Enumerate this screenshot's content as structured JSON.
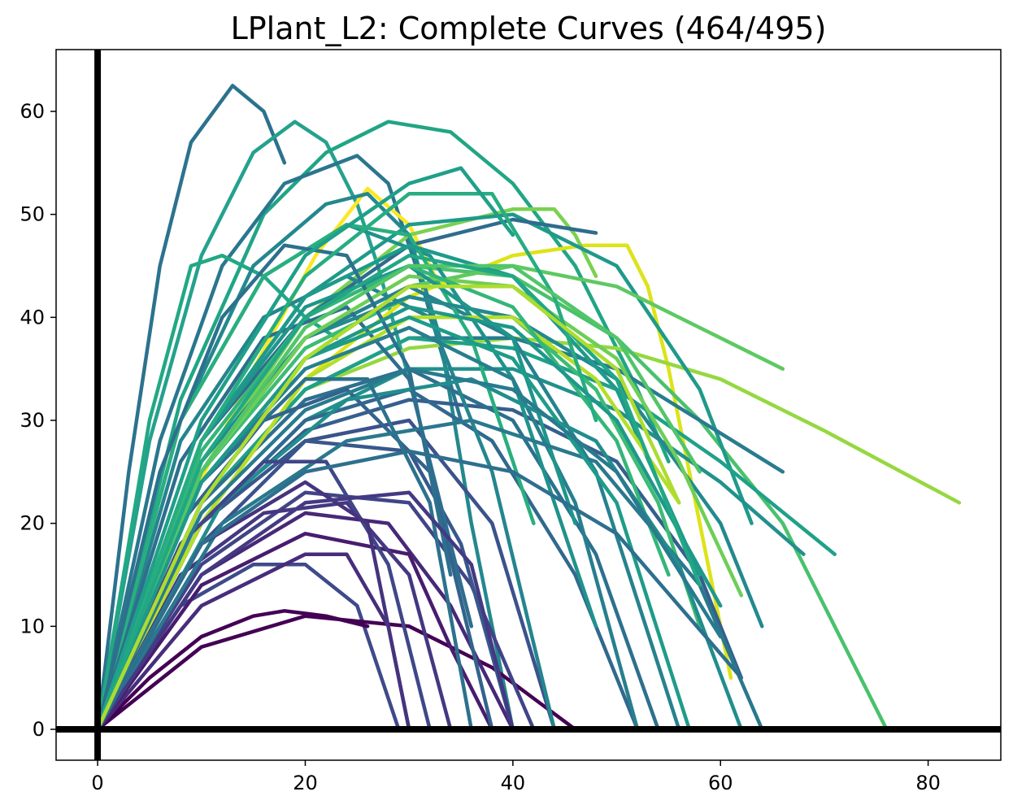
{
  "chart_data": {
    "type": "line",
    "title": "LPlant_L2: Complete Curves (464/495)",
    "xlabel": "",
    "ylabel": "",
    "xlim": [
      -4,
      87
    ],
    "ylim": [
      -3,
      66
    ],
    "xticks": [
      0,
      20,
      40,
      60,
      80
    ],
    "yticks": [
      0,
      10,
      20,
      30,
      40,
      50,
      60
    ],
    "grid": false,
    "legend": "none",
    "colormap": "viridis",
    "reference_lines": {
      "x": 0,
      "y": 0
    },
    "series": [
      {
        "color": "#2c728e",
        "x": [
          0,
          3,
          6,
          9,
          13,
          16,
          18
        ],
        "y": [
          0,
          25,
          45,
          57,
          62.5,
          60,
          55
        ]
      },
      {
        "color": "#25a18e",
        "x": [
          0,
          5,
          10,
          15,
          19,
          22,
          25,
          27,
          30
        ],
        "y": [
          0,
          28,
          46,
          56,
          59,
          57,
          51,
          45,
          34
        ]
      },
      {
        "color": "#21a585",
        "x": [
          0,
          8,
          16,
          22,
          28,
          34,
          40,
          46,
          52,
          55
        ],
        "y": [
          0,
          32,
          50,
          56,
          59,
          58,
          53,
          45,
          33,
          26
        ]
      },
      {
        "color": "#2a768e",
        "x": [
          0,
          6,
          12,
          18,
          25,
          28,
          31,
          35
        ],
        "y": [
          0,
          28,
          45,
          53,
          55.7,
          53,
          44,
          30
        ]
      },
      {
        "color": "#fde725",
        "x": [
          0,
          8,
          15,
          21,
          26,
          30,
          33
        ],
        "y": [
          0,
          20,
          35,
          46,
          52.5,
          49,
          43
        ]
      },
      {
        "color": "#dde318",
        "x": [
          0,
          10,
          20,
          30,
          40,
          47,
          51,
          53,
          55,
          57,
          59,
          61
        ],
        "y": [
          0,
          20,
          34,
          42,
          46,
          47,
          47,
          43,
          35,
          25,
          15,
          5
        ]
      },
      {
        "color": "#95d840",
        "x": [
          0,
          10,
          20,
          30,
          40,
          50,
          60,
          70,
          83
        ],
        "y": [
          0,
          22,
          33,
          37,
          38,
          37,
          34,
          29,
          22
        ]
      },
      {
        "color": "#4ac16d",
        "x": [
          0,
          10,
          20,
          30,
          40,
          50,
          58,
          66,
          76
        ],
        "y": [
          0,
          25,
          40,
          45,
          44,
          38,
          30,
          20,
          0
        ]
      },
      {
        "color": "#7ad151",
        "x": [
          0,
          10,
          20,
          30,
          40,
          44,
          46,
          48
        ],
        "y": [
          0,
          25,
          40,
          48,
          50.5,
          50.5,
          48,
          44
        ]
      },
      {
        "color": "#22a884",
        "x": [
          0,
          5,
          9,
          12,
          16,
          20,
          23
        ],
        "y": [
          0,
          30,
          45,
          46,
          44,
          40,
          38
        ]
      },
      {
        "color": "#23888e",
        "x": [
          0,
          8,
          15,
          22,
          26,
          30,
          33,
          36,
          40
        ],
        "y": [
          0,
          30,
          45,
          51,
          52,
          48,
          38,
          20,
          0
        ]
      },
      {
        "color": "#1f9a8a",
        "x": [
          0,
          10,
          20,
          30,
          40,
          50,
          58,
          63
        ],
        "y": [
          0,
          28,
          42,
          49,
          50,
          45,
          33,
          20
        ]
      },
      {
        "color": "#2f6c8e",
        "x": [
          0,
          10,
          20,
          30,
          40,
          48
        ],
        "y": [
          0,
          28,
          40,
          47,
          49.5,
          48.2
        ]
      },
      {
        "color": "#5ec962",
        "x": [
          0,
          10,
          20,
          30,
          40,
          50,
          58,
          66
        ],
        "y": [
          0,
          22,
          36,
          43,
          45,
          43,
          39,
          35
        ]
      },
      {
        "color": "#3e4a89",
        "x": [
          0,
          8,
          15,
          20,
          25,
          29
        ],
        "y": [
          0,
          12,
          16,
          16,
          12,
          0
        ]
      },
      {
        "color": "#440154",
        "x": [
          0,
          5,
          10,
          15,
          18,
          22,
          26
        ],
        "y": [
          0,
          5,
          9,
          11,
          11.5,
          11,
          10
        ]
      },
      {
        "color": "#440154",
        "x": [
          0,
          10,
          20,
          30,
          38,
          42,
          46
        ],
        "y": [
          0,
          8,
          11,
          10,
          6,
          3,
          0
        ]
      },
      {
        "color": "#472d7b",
        "x": [
          0,
          10,
          20,
          24,
          28,
          30
        ],
        "y": [
          0,
          12,
          17,
          17,
          10,
          0
        ]
      },
      {
        "color": "#3b528b",
        "x": [
          0,
          10,
          20,
          30,
          38,
          44
        ],
        "y": [
          0,
          18,
          28,
          30,
          20,
          0
        ]
      },
      {
        "color": "#355f8d",
        "x": [
          0,
          10,
          20,
          30,
          40,
          50,
          58,
          62
        ],
        "y": [
          0,
          20,
          29,
          32,
          31,
          26,
          15,
          5
        ]
      },
      {
        "color": "#287c8e",
        "x": [
          0,
          10,
          20,
          30,
          40,
          50,
          58,
          66
        ],
        "y": [
          0,
          22,
          33,
          38,
          38,
          35,
          30,
          25
        ]
      },
      {
        "color": "#21918c",
        "x": [
          0,
          10,
          20,
          30,
          40,
          50,
          60,
          68
        ],
        "y": [
          0,
          20,
          30,
          35,
          35,
          31,
          24,
          17
        ]
      },
      {
        "color": "#1fa188",
        "x": [
          0,
          10,
          20,
          30,
          40,
          50,
          60,
          71
        ],
        "y": [
          0,
          22,
          33,
          38,
          37,
          33,
          26,
          17
        ]
      },
      {
        "color": "#31688e",
        "x": [
          0,
          10,
          20,
          30,
          38,
          46,
          52
        ],
        "y": [
          0,
          20,
          30,
          33,
          28,
          15,
          0
        ]
      },
      {
        "color": "#26828e",
        "x": [
          0,
          10,
          20,
          30,
          40,
          48,
          56
        ],
        "y": [
          0,
          25,
          38,
          43,
          38,
          25,
          0
        ]
      },
      {
        "color": "#482878",
        "x": [
          0,
          10,
          20,
          28,
          34,
          40
        ],
        "y": [
          0,
          15,
          21,
          20,
          12,
          0
        ]
      },
      {
        "color": "#414487",
        "x": [
          0,
          10,
          20,
          30,
          36,
          42
        ],
        "y": [
          0,
          16,
          23,
          22,
          14,
          0
        ]
      },
      {
        "color": "#2d708e",
        "x": [
          0,
          10,
          20,
          30,
          40,
          48,
          54
        ],
        "y": [
          0,
          22,
          32,
          35,
          30,
          17,
          0
        ]
      },
      {
        "color": "#25858e",
        "x": [
          0,
          8,
          16,
          24,
          32,
          38,
          44
        ],
        "y": [
          0,
          28,
          40,
          44,
          40,
          25,
          0
        ]
      },
      {
        "color": "#20928c",
        "x": [
          0,
          8,
          16,
          24,
          32,
          40,
          48
        ],
        "y": [
          0,
          30,
          44,
          49,
          46,
          34,
          10
        ]
      },
      {
        "color": "#29af7f",
        "x": [
          0,
          8,
          16,
          24,
          30,
          36,
          42
        ],
        "y": [
          0,
          30,
          44,
          49,
          48,
          38,
          20
        ]
      },
      {
        "color": "#3dbc74",
        "x": [
          0,
          10,
          20,
          30,
          40,
          48,
          54,
          58
        ],
        "y": [
          0,
          25,
          37,
          42,
          40,
          33,
          22,
          10
        ]
      },
      {
        "color": "#38588c",
        "x": [
          0,
          10,
          20,
          30,
          35,
          40
        ],
        "y": [
          0,
          20,
          28,
          27,
          18,
          0
        ]
      },
      {
        "color": "#2e6e8e",
        "x": [
          0,
          8,
          16,
          24,
          30,
          36
        ],
        "y": [
          0,
          26,
          38,
          41,
          34,
          10
        ]
      },
      {
        "color": "#23898e",
        "x": [
          0,
          10,
          20,
          30,
          40,
          50,
          60,
          64
        ],
        "y": [
          0,
          26,
          38,
          42,
          40,
          34,
          20,
          10
        ]
      },
      {
        "color": "#1e9b8a",
        "x": [
          0,
          10,
          20,
          30,
          40,
          50,
          58
        ],
        "y": [
          0,
          28,
          42,
          47,
          44,
          33,
          15
        ]
      },
      {
        "color": "#6ece58",
        "x": [
          0,
          10,
          20,
          30,
          40,
          50,
          56,
          62
        ],
        "y": [
          0,
          25,
          38,
          44,
          43,
          36,
          26,
          13
        ]
      },
      {
        "color": "#b5de2b",
        "x": [
          0,
          10,
          20,
          30,
          40,
          48,
          56
        ],
        "y": [
          0,
          20,
          34,
          40,
          40,
          34,
          22
        ]
      },
      {
        "color": "#481c6e",
        "x": [
          0,
          10,
          20,
          30,
          34,
          38
        ],
        "y": [
          0,
          14,
          19,
          17,
          8,
          0
        ]
      },
      {
        "color": "#453781",
        "x": [
          0,
          8,
          16,
          24,
          30,
          34
        ],
        "y": [
          0,
          15,
          21,
          22,
          15,
          0
        ]
      },
      {
        "color": "#33638d",
        "x": [
          0,
          8,
          16,
          24,
          32,
          38
        ],
        "y": [
          0,
          20,
          30,
          33,
          25,
          0
        ]
      },
      {
        "color": "#277f8e",
        "x": [
          0,
          10,
          20,
          30,
          40,
          46,
          52
        ],
        "y": [
          0,
          24,
          35,
          39,
          34,
          22,
          0
        ]
      },
      {
        "color": "#1f958b",
        "x": [
          0,
          10,
          20,
          30,
          40,
          46
        ],
        "y": [
          0,
          28,
          41,
          45,
          38,
          20
        ]
      },
      {
        "color": "#34b679",
        "x": [
          0,
          10,
          20,
          30,
          40,
          50,
          55
        ],
        "y": [
          0,
          27,
          40,
          45,
          41,
          28,
          15
        ]
      },
      {
        "color": "#2a788e",
        "x": [
          0,
          12,
          24,
          36,
          48,
          58,
          64
        ],
        "y": [
          0,
          20,
          28,
          30,
          26,
          14,
          0
        ]
      },
      {
        "color": "#228d8d",
        "x": [
          0,
          12,
          24,
          36,
          48,
          56,
          62
        ],
        "y": [
          0,
          22,
          32,
          34,
          28,
          16,
          0
        ]
      },
      {
        "color": "#1e9c89",
        "x": [
          0,
          10,
          20,
          30,
          40,
          50,
          57
        ],
        "y": [
          0,
          24,
          36,
          40,
          36,
          22,
          0
        ]
      },
      {
        "color": "#2c718e",
        "x": [
          0,
          10,
          20,
          26,
          32,
          36
        ],
        "y": [
          0,
          24,
          34,
          34,
          22,
          0
        ]
      },
      {
        "color": "#3f4788",
        "x": [
          0,
          8,
          16,
          22,
          28,
          32
        ],
        "y": [
          0,
          18,
          26,
          26,
          16,
          0
        ]
      },
      {
        "color": "#46337e",
        "x": [
          0,
          10,
          20,
          26,
          30
        ],
        "y": [
          0,
          18,
          24,
          20,
          0
        ]
      },
      {
        "color": "#2d708e",
        "x": [
          0,
          6,
          12,
          18,
          24,
          30,
          34
        ],
        "y": [
          0,
          25,
          40,
          47,
          46,
          35,
          15
        ]
      },
      {
        "color": "#26ad81",
        "x": [
          0,
          10,
          20,
          30,
          38,
          44,
          48
        ],
        "y": [
          0,
          28,
          44,
          52,
          52,
          42,
          30
        ]
      },
      {
        "color": "#1fa088",
        "x": [
          0,
          10,
          20,
          30,
          35,
          40
        ],
        "y": [
          0,
          30,
          46,
          53,
          54.5,
          48
        ]
      },
      {
        "color": "#52c569",
        "x": [
          0,
          10,
          20,
          30,
          40,
          50,
          58
        ],
        "y": [
          0,
          25,
          39,
          45,
          45,
          38,
          25
        ]
      },
      {
        "color": "#443983",
        "x": [
          0,
          10,
          20,
          30,
          36,
          40
        ],
        "y": [
          0,
          15,
          22,
          23,
          16,
          0
        ]
      },
      {
        "color": "#2e6f8e",
        "x": [
          0,
          10,
          20,
          30,
          40,
          50,
          62
        ],
        "y": [
          0,
          18,
          25,
          27,
          25,
          19,
          5
        ]
      },
      {
        "color": "#297a8e",
        "x": [
          0,
          10,
          20,
          30,
          40,
          50,
          60
        ],
        "y": [
          0,
          21,
          31,
          35,
          33,
          25,
          9
        ]
      },
      {
        "color": "#1f988b",
        "x": [
          0,
          10,
          20,
          30,
          40,
          50,
          60
        ],
        "y": [
          0,
          24,
          36,
          41,
          39,
          30,
          12
        ]
      },
      {
        "color": "#22a785",
        "x": [
          0,
          10,
          20,
          30,
          40,
          50,
          58
        ],
        "y": [
          0,
          26,
          40,
          46,
          44,
          34,
          14
        ]
      },
      {
        "color": "#addc30",
        "x": [
          0,
          10,
          20,
          30,
          40,
          50,
          56
        ],
        "y": [
          0,
          22,
          36,
          43,
          43,
          35,
          22
        ]
      }
    ]
  }
}
